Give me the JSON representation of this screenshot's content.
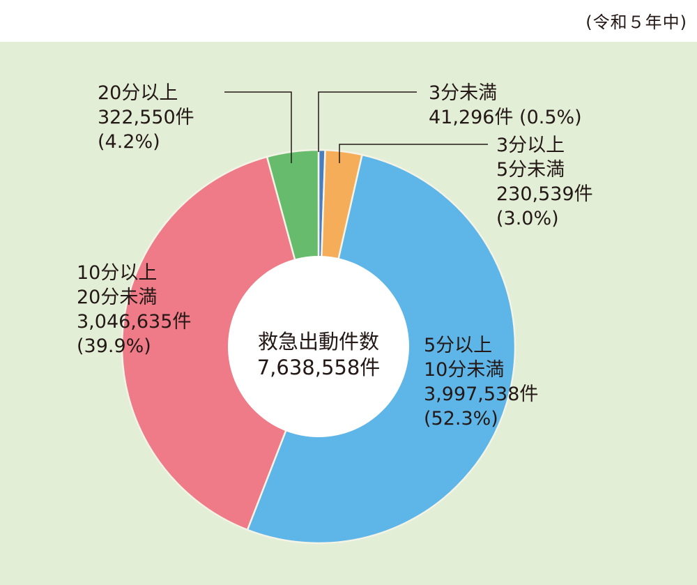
{
  "note": "(令和５年中)",
  "chart_data": {
    "type": "pie",
    "donut": true,
    "center_title": "救急出動件数",
    "center_total": "7,638,558件",
    "slices": [
      {
        "name": "3分未満",
        "line1": "3分未満",
        "line2": "41,296件 (0.5%)",
        "count": 41296,
        "percent": 0.5,
        "color": "#4a7cc0"
      },
      {
        "name": "3分以上5分未満",
        "line1": "3分以上",
        "line2": "5分未満",
        "line3": "230,539件",
        "line4": "(3.0%)",
        "count": 230539,
        "percent": 3.0,
        "color": "#f5ad5a"
      },
      {
        "name": "5分以上10分未満",
        "line1": "5分以上",
        "line2": "10分未満",
        "line3": "3,997,538件",
        "line4": "(52.3%)",
        "count": 3997538,
        "percent": 52.3,
        "color": "#5eb5e7"
      },
      {
        "name": "10分以上20分未満",
        "line1": "10分以上",
        "line2": "20分未満",
        "line3": "3,046,635件",
        "line4": "(39.9%)",
        "count": 3046635,
        "percent": 39.9,
        "color": "#ee7b87"
      },
      {
        "name": "20分以上",
        "line1": "20分以上",
        "line2": "322,550件",
        "line3": "(4.2%)",
        "count": 322550,
        "percent": 4.2,
        "color": "#66bc6c"
      }
    ]
  }
}
